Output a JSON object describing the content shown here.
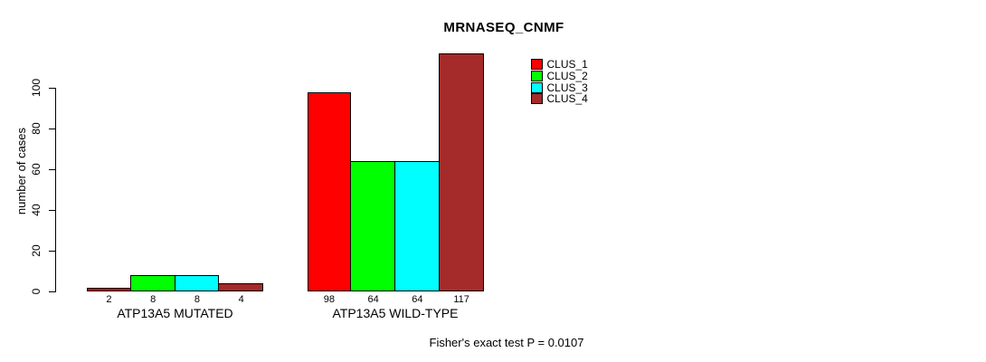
{
  "chart_data": {
    "type": "bar",
    "title": "MRNASEQ_CNMF",
    "xlabel": "",
    "ylabel": "number of cases",
    "ylim": [
      0,
      117
    ],
    "yticks": [
      0,
      20,
      40,
      60,
      80,
      100
    ],
    "grid": false,
    "legend_position": "top-right",
    "categories": [
      "ATP13A5 MUTATED",
      "ATP13A5 WILD-TYPE"
    ],
    "series": [
      {
        "name": "CLUS_1",
        "color": "#ff0000",
        "values": [
          2,
          98
        ]
      },
      {
        "name": "CLUS_2",
        "color": "#00ff00",
        "values": [
          8,
          64
        ]
      },
      {
        "name": "CLUS_3",
        "color": "#00ffff",
        "values": [
          8,
          64
        ]
      },
      {
        "name": "CLUS_4",
        "color": "#a52a2a",
        "values": [
          4,
          117
        ]
      }
    ],
    "bar_value_labels": [
      [
        2,
        8,
        8,
        4
      ],
      [
        98,
        64,
        64,
        117
      ]
    ],
    "annotation": "Fisher's exact test P = 0.0107"
  },
  "colors": {
    "background": "#ffffff",
    "axis": "#000000",
    "text": "#000000"
  }
}
